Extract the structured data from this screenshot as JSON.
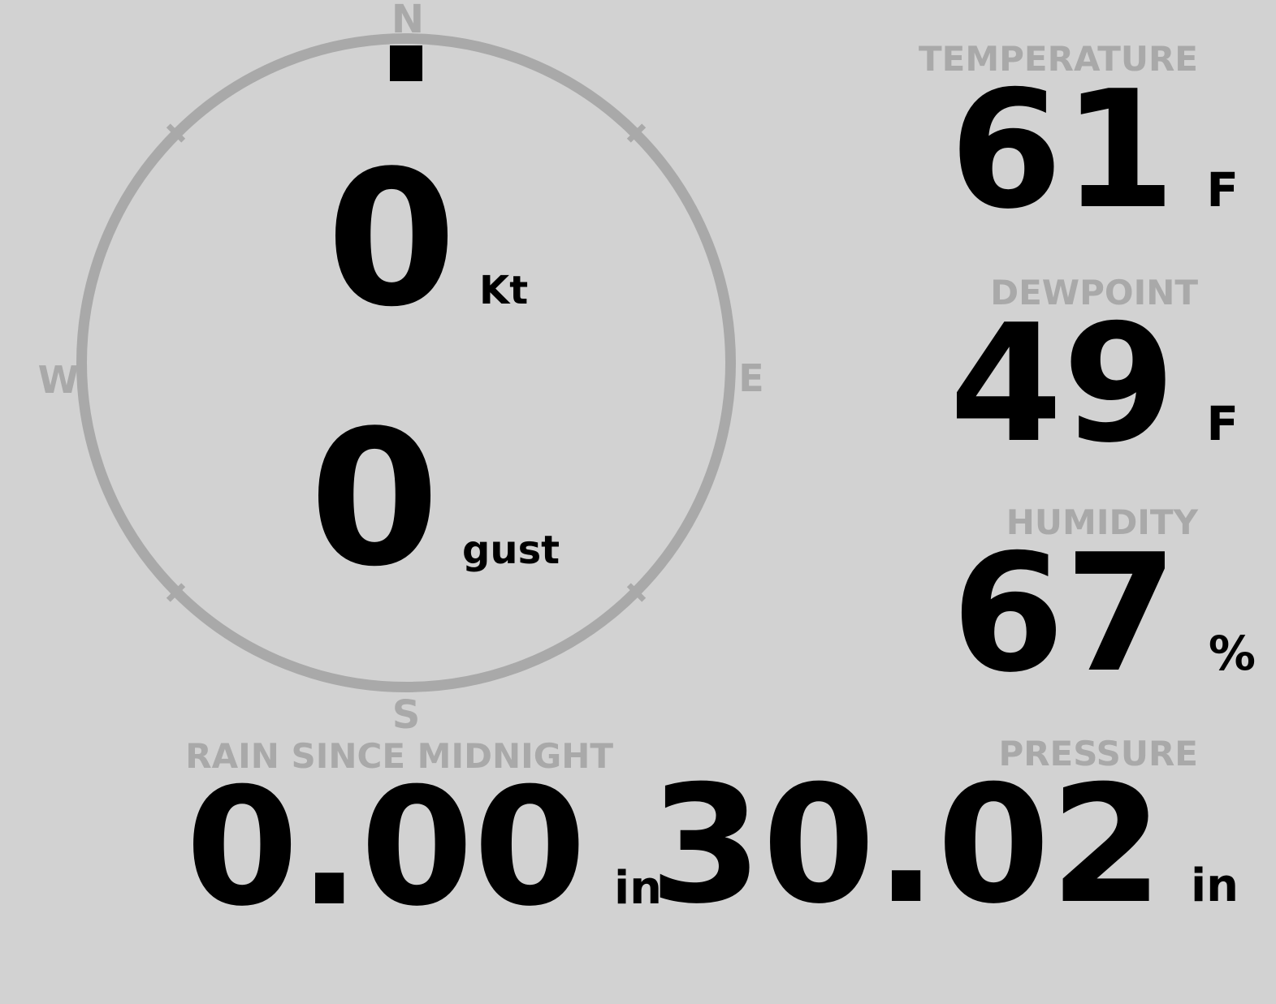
{
  "colors": {
    "background": "#d2d2d2",
    "muted": "#a9a9a9",
    "value": "#000000"
  },
  "wind_compass": {
    "cardinals": {
      "north": "N",
      "east": "E",
      "south": "S",
      "west": "W"
    },
    "speed": {
      "value": "0",
      "unit": "Kt"
    },
    "gust": {
      "value": "0",
      "unit": "gust"
    },
    "direction_deg": 0
  },
  "metrics": {
    "temperature": {
      "label": "TEMPERATURE",
      "value": "61",
      "unit": "F"
    },
    "dewpoint": {
      "label": "DEWPOINT",
      "value": "49",
      "unit": "F"
    },
    "humidity": {
      "label": "HUMIDITY",
      "value": "67",
      "unit": "%"
    },
    "pressure": {
      "label": "PRESSURE",
      "value": "30.02",
      "unit": "in"
    },
    "rain_since_midnight": {
      "label": "RAIN SINCE MIDNIGHT",
      "value": "0.00",
      "unit": "in"
    }
  }
}
